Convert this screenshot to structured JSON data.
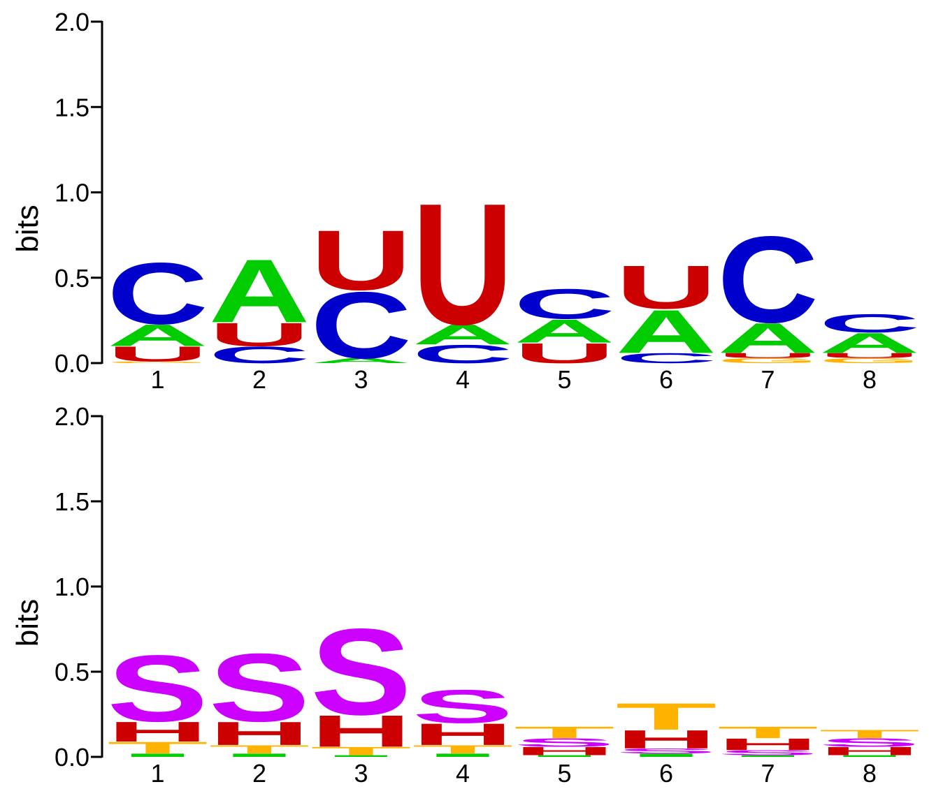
{
  "chart_data": [
    {
      "type": "sequence-logo",
      "ylabel": "bits",
      "ylim": [
        0,
        2.0
      ],
      "yticks": [
        "0.0",
        "0.5",
        "1.0",
        "1.5",
        "2.0"
      ],
      "ytick_values": [
        0,
        0.5,
        1.0,
        1.5,
        2.0
      ],
      "positions": [
        "1",
        "2",
        "3",
        "4",
        "5",
        "6",
        "7",
        "8"
      ],
      "colors": {
        "A": "#00cc00",
        "C": "#0000cc",
        "U": "#cc0000",
        "G": "#ffb300"
      },
      "stacks": [
        [
          {
            "letter": "G",
            "bits": 0.01
          },
          {
            "letter": "U",
            "bits": 0.09
          },
          {
            "letter": "A",
            "bits": 0.13
          },
          {
            "letter": "C",
            "bits": 0.37
          }
        ],
        [
          {
            "letter": "C",
            "bits": 0.1
          },
          {
            "letter": "U",
            "bits": 0.14
          },
          {
            "letter": "A",
            "bits": 0.38
          }
        ],
        [
          {
            "letter": "A",
            "bits": 0.03
          },
          {
            "letter": "C",
            "bits": 0.4
          },
          {
            "letter": "U",
            "bits": 0.36
          }
        ],
        [
          {
            "letter": "C",
            "bits": 0.11
          },
          {
            "letter": "A",
            "bits": 0.12
          },
          {
            "letter": "U",
            "bits": 0.73
          }
        ],
        [
          {
            "letter": "U",
            "bits": 0.12
          },
          {
            "letter": "A",
            "bits": 0.14
          },
          {
            "letter": "C",
            "bits": 0.18
          }
        ],
        [
          {
            "letter": "C",
            "bits": 0.06
          },
          {
            "letter": "A",
            "bits": 0.26
          },
          {
            "letter": "U",
            "bits": 0.26
          }
        ],
        [
          {
            "letter": "G",
            "bits": 0.03
          },
          {
            "letter": "U",
            "bits": 0.03
          },
          {
            "letter": "A",
            "bits": 0.18
          },
          {
            "letter": "C",
            "bits": 0.52
          }
        ],
        [
          {
            "letter": "G",
            "bits": 0.03
          },
          {
            "letter": "U",
            "bits": 0.03
          },
          {
            "letter": "A",
            "bits": 0.12
          },
          {
            "letter": "C",
            "bits": 0.11
          }
        ]
      ]
    },
    {
      "type": "sequence-logo",
      "ylabel": "bits",
      "ylim": [
        0,
        2.0
      ],
      "yticks": [
        "0.0",
        "0.5",
        "1.0",
        "1.5",
        "2.0"
      ],
      "ytick_values": [
        0,
        0.5,
        1.0,
        1.5,
        2.0
      ],
      "positions": [
        "1",
        "2",
        "3",
        "4",
        "5",
        "6",
        "7",
        "8"
      ],
      "colors": {
        "I": "#00cc00",
        "T": "#ffb300",
        "H": "#cc0000",
        "S": "#cc00ff"
      },
      "stacks": [
        [
          {
            "letter": "I",
            "bits": 0.02
          },
          {
            "letter": "T",
            "bits": 0.07
          },
          {
            "letter": "H",
            "bits": 0.12
          },
          {
            "letter": "S",
            "bits": 0.4
          }
        ],
        [
          {
            "letter": "I",
            "bits": 0.02
          },
          {
            "letter": "T",
            "bits": 0.05
          },
          {
            "letter": "H",
            "bits": 0.14
          },
          {
            "letter": "S",
            "bits": 0.41
          }
        ],
        [
          {
            "letter": "I",
            "bits": 0.01
          },
          {
            "letter": "T",
            "bits": 0.05
          },
          {
            "letter": "H",
            "bits": 0.19
          },
          {
            "letter": "S",
            "bits": 0.52
          }
        ],
        [
          {
            "letter": "I",
            "bits": 0.02
          },
          {
            "letter": "T",
            "bits": 0.05
          },
          {
            "letter": "H",
            "bits": 0.13
          },
          {
            "letter": "S",
            "bits": 0.2
          }
        ],
        [
          {
            "letter": "I",
            "bits": 0.01
          },
          {
            "letter": "H",
            "bits": 0.05
          },
          {
            "letter": "S",
            "bits": 0.05
          },
          {
            "letter": "T",
            "bits": 0.07
          }
        ],
        [
          {
            "letter": "I",
            "bits": 0.02
          },
          {
            "letter": "S",
            "bits": 0.03
          },
          {
            "letter": "H",
            "bits": 0.11
          },
          {
            "letter": "T",
            "bits": 0.16
          }
        ],
        [
          {
            "letter": "I",
            "bits": 0.01
          },
          {
            "letter": "S",
            "bits": 0.03
          },
          {
            "letter": "H",
            "bits": 0.07
          },
          {
            "letter": "T",
            "bits": 0.07
          }
        ],
        [
          {
            "letter": "I",
            "bits": 0.01
          },
          {
            "letter": "H",
            "bits": 0.05
          },
          {
            "letter": "S",
            "bits": 0.05
          },
          {
            "letter": "T",
            "bits": 0.05
          }
        ]
      ]
    }
  ]
}
